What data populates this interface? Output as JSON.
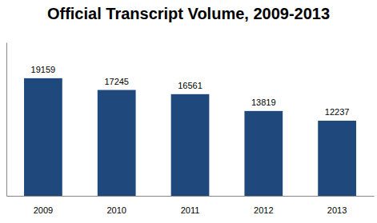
{
  "chart_data": {
    "type": "bar",
    "title": "Official Transcript Volume, 2009-2013",
    "categories": [
      "2009",
      "2010",
      "2011",
      "2012",
      "2013"
    ],
    "values": [
      19159,
      17245,
      16561,
      13819,
      12237
    ],
    "color": "#1f497d",
    "ylim": [
      0,
      25000
    ],
    "yticks": [],
    "data_labels": true,
    "tick_labels": "x",
    "grid": false
  }
}
